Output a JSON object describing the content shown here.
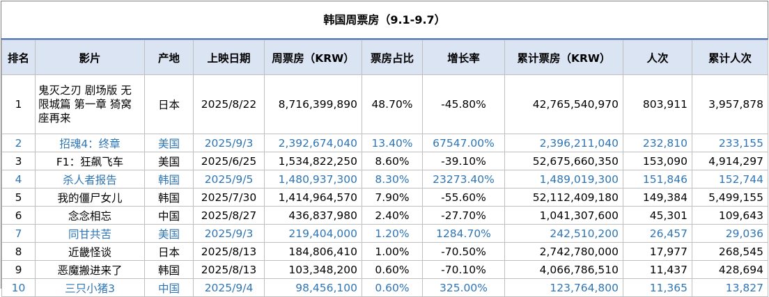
{
  "title": "韩国周票房（9.1-9.7）",
  "headers": [
    "排名",
    "影片",
    "产地",
    "上映日期",
    "周票房（KRW）",
    "票房占比",
    "增长率",
    "累计票房（KRW）",
    "人次",
    "累计人次"
  ],
  "rows": [
    {
      "rank": "1",
      "film": "鬼灭之刃 剧场版 无限城篇 第一章 猗窝座再来",
      "origin": "日本",
      "date": "2025/8/22",
      "weekly": "8,716,399,890",
      "share": "48.70%",
      "growth": "-45.80%",
      "total": "42,765,540,970",
      "admissions": "803,911",
      "total_admissions": "3,957,878"
    },
    {
      "rank": "2",
      "film": "招魂4：终章",
      "origin": "美国",
      "date": "2025/9/3",
      "weekly": "2,392,674,040",
      "share": "13.40%",
      "growth": "67547.00%",
      "total": "2,396,211,040",
      "admissions": "232,810",
      "total_admissions": "233,155"
    },
    {
      "rank": "3",
      "film": "F1：狂飙飞车",
      "origin": "美国",
      "date": "2025/6/25",
      "weekly": "1,534,822,250",
      "share": "8.60%",
      "growth": "-39.10%",
      "total": "52,675,660,350",
      "admissions": "153,090",
      "total_admissions": "4,914,297"
    },
    {
      "rank": "4",
      "film": "杀人者报告",
      "origin": "韩国",
      "date": "2025/9/5",
      "weekly": "1,480,937,300",
      "share": "8.30%",
      "growth": "23273.40%",
      "total": "1,489,019,300",
      "admissions": "151,846",
      "total_admissions": "152,744"
    },
    {
      "rank": "5",
      "film": "我的僵尸女儿",
      "origin": "韩国",
      "date": "2025/7/30",
      "weekly": "1,414,964,570",
      "share": "7.90%",
      "growth": "-55.60%",
      "total": "52,112,409,180",
      "admissions": "149,384",
      "total_admissions": "5,499,155"
    },
    {
      "rank": "6",
      "film": "念念相忘",
      "origin": "中国",
      "date": "2025/8/27",
      "weekly": "436,837,980",
      "share": "2.40%",
      "growth": "-27.70%",
      "total": "1,041,307,600",
      "admissions": "45,301",
      "total_admissions": "109,643"
    },
    {
      "rank": "7",
      "film": "同甘共苦",
      "origin": "美国",
      "date": "2025/9/3",
      "weekly": "219,404,000",
      "share": "1.20%",
      "growth": "1284.70%",
      "total": "242,510,200",
      "admissions": "26,457",
      "total_admissions": "29,036"
    },
    {
      "rank": "8",
      "film": "近畿怪谈",
      "origin": "日本",
      "date": "2025/8/13",
      "weekly": "184,806,410",
      "share": "1.00%",
      "growth": "-70.50%",
      "total": "2,742,780,000",
      "admissions": "17,977",
      "total_admissions": "268,545"
    },
    {
      "rank": "9",
      "film": "恶魔搬进来了",
      "origin": "韩国",
      "date": "2025/8/13",
      "weekly": "103,348,200",
      "share": "0.60%",
      "growth": "-70.10%",
      "total": "4,066,786,510",
      "admissions": "11,437",
      "total_admissions": "428,694"
    },
    {
      "rank": "10",
      "film": "三只小猪3",
      "origin": "中国",
      "date": "2025/9/4",
      "weekly": "98,456,100",
      "share": "0.60%",
      "growth": "325.00%",
      "total": "123,764,800",
      "admissions": "11,365",
      "total_admissions": "13,827"
    }
  ],
  "colors": {
    "highlight_text": "#2e75b6",
    "header_bg": "#dbe4f3",
    "title_rule": "#4472c4"
  }
}
